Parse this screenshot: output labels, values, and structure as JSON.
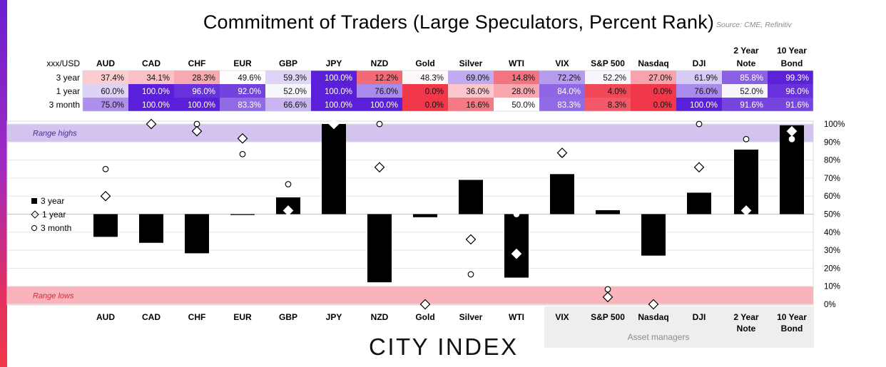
{
  "title": "Commitment of Traders (Large Speculators, Percent Rank)",
  "source": "Source: CME, Refinitiv",
  "brand": "CITY INDEX",
  "table": {
    "corner": "xxx/USD",
    "columns": [
      "AUD",
      "CAD",
      "CHF",
      "EUR",
      "GBP",
      "JPY",
      "NZD",
      "Gold",
      "Silver",
      "WTI",
      "VIX",
      "S&P 500",
      "Nasdaq",
      "DJI",
      "2 Year\nNote",
      "10 Year\nBond"
    ],
    "rows": [
      {
        "label": "3 year",
        "values": [
          37.4,
          34.1,
          28.3,
          49.6,
          59.3,
          100.0,
          12.2,
          48.3,
          69.0,
          14.8,
          72.2,
          52.2,
          27.0,
          61.9,
          85.8,
          99.3
        ]
      },
      {
        "label": "1 year",
        "values": [
          60.0,
          100.0,
          96.0,
          92.0,
          52.0,
          100.0,
          76.0,
          0.0,
          36.0,
          28.0,
          84.0,
          4.0,
          0.0,
          76.0,
          52.0,
          96.0
        ]
      },
      {
        "label": "3 month",
        "values": [
          75.0,
          100.0,
          100.0,
          83.3,
          66.6,
          100.0,
          100.0,
          0.0,
          16.6,
          50.0,
          83.3,
          8.3,
          0.0,
          100.0,
          91.6,
          91.6
        ]
      }
    ],
    "colors": {
      "high": "#5a1fd8",
      "mid": "#ffffff",
      "low": "#f0384a"
    }
  },
  "chart_data": {
    "type": "bar",
    "categories": [
      "AUD",
      "CAD",
      "CHF",
      "EUR",
      "GBP",
      "JPY",
      "NZD",
      "Gold",
      "Silver",
      "WTI",
      "VIX",
      "S&P 500",
      "Nasdaq",
      "DJI",
      "2 Year\nNote",
      "10 Year\nBond"
    ],
    "baseline": 50,
    "ylim": [
      0,
      100
    ],
    "yticks": [
      "0%",
      "10%",
      "20%",
      "30%",
      "40%",
      "50%",
      "60%",
      "70%",
      "80%",
      "90%",
      "100%"
    ],
    "series": [
      {
        "name": "3 year",
        "marker": "bar",
        "values": [
          37.4,
          34.1,
          28.3,
          49.6,
          59.3,
          100.0,
          12.2,
          48.3,
          69.0,
          14.8,
          72.2,
          52.2,
          27.0,
          61.9,
          85.8,
          99.3
        ]
      },
      {
        "name": "1 year",
        "marker": "diamond",
        "values": [
          60.0,
          100.0,
          96.0,
          92.0,
          52.0,
          100.0,
          76.0,
          0.0,
          36.0,
          28.0,
          84.0,
          4.0,
          0.0,
          76.0,
          52.0,
          96.0
        ]
      },
      {
        "name": "3 month",
        "marker": "circle",
        "values": [
          75.0,
          100.0,
          100.0,
          83.3,
          66.6,
          100.0,
          100.0,
          0.0,
          16.6,
          50.0,
          83.3,
          8.3,
          0.0,
          100.0,
          91.6,
          91.6
        ]
      }
    ],
    "bands": [
      {
        "label": "Range highs",
        "from": 90,
        "to": 100,
        "color": "#d2c3ef",
        "label_color": "#4a2a9a"
      },
      {
        "label": "Range lows",
        "from": 0,
        "to": 10,
        "color": "#f8b3bb",
        "label_color": "#d8283a"
      }
    ],
    "legend": [
      "3 year",
      "1 year",
      "3 month"
    ],
    "group_label": "Asset managers"
  }
}
